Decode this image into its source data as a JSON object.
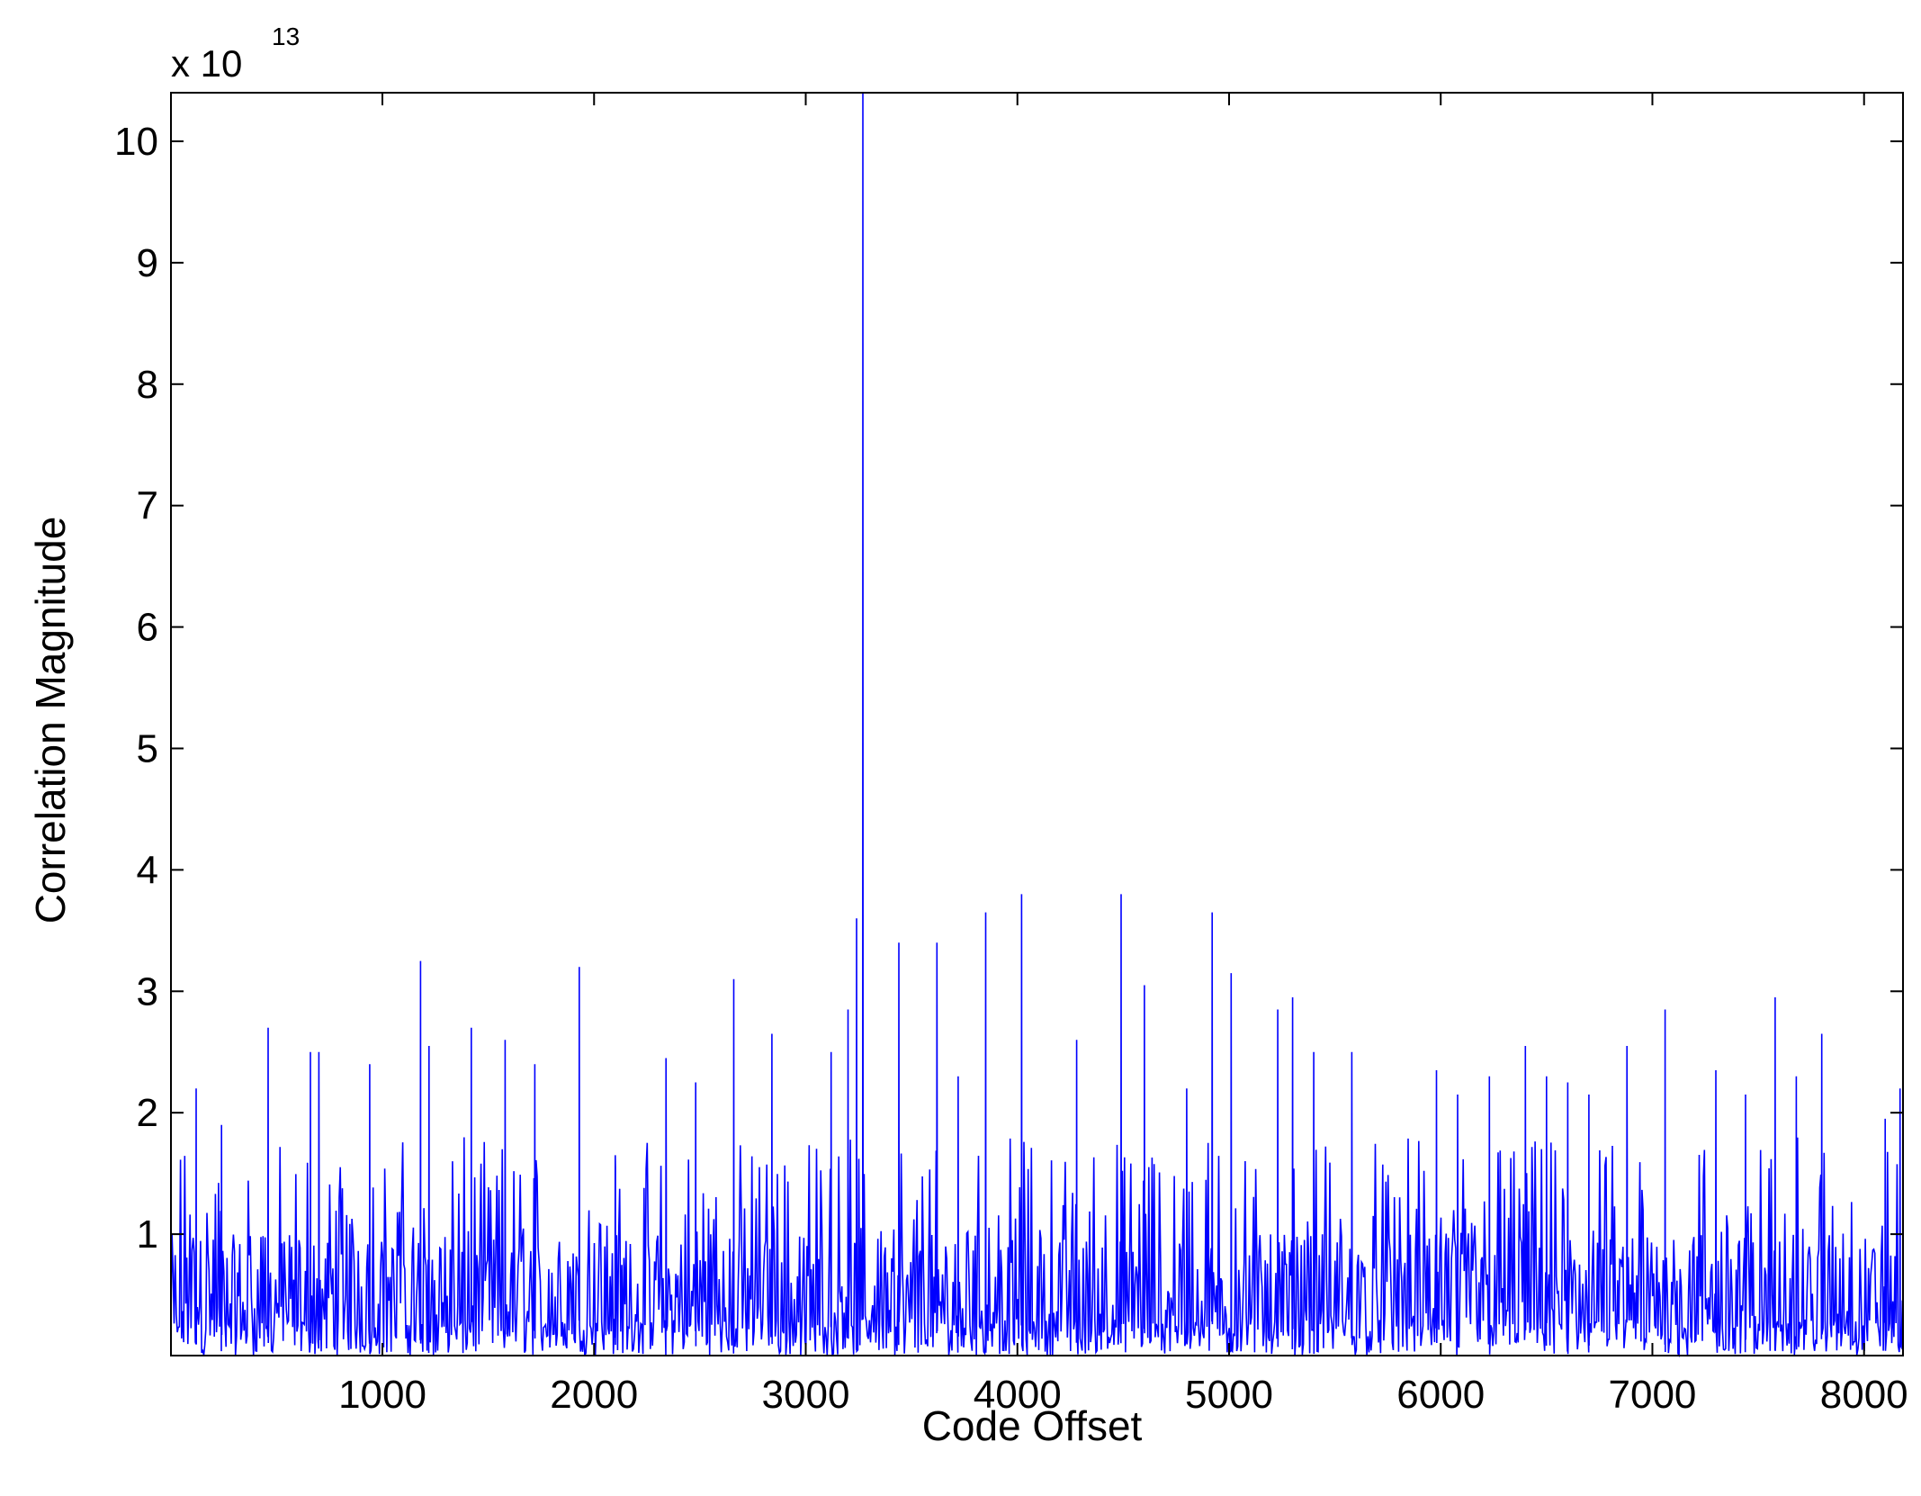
{
  "chart_data": {
    "type": "line",
    "xlabel": "Code Offset",
    "ylabel": "Correlation Magnitude",
    "y_exponent_base": "x 10",
    "y_exponent_power": "13",
    "xlim": [
      1,
      8184
    ],
    "ylim": [
      0,
      10.4
    ],
    "x_ticks": [
      1000,
      2000,
      3000,
      4000,
      5000,
      6000,
      7000,
      8000
    ],
    "x_tick_labels": [
      "1000",
      "2000",
      "3000",
      "4000",
      "5000",
      "6000",
      "7000",
      "8000"
    ],
    "y_ticks": [
      1,
      2,
      3,
      4,
      5,
      6,
      7,
      8,
      9,
      10
    ],
    "y_tick_labels": [
      "1",
      "2",
      "3",
      "4",
      "5",
      "6",
      "7",
      "8",
      "9",
      "10"
    ],
    "grid": false,
    "line_color": "#0000ff",
    "series": [
      {
        "x_start": 1,
        "x_end": 8184,
        "noise_floor_max": 1.8,
        "peak": {
          "x": 3270,
          "y": 10.4
        },
        "spikes": [
          [
            120,
            2.2
          ],
          [
            240,
            1.9
          ],
          [
            460,
            2.7
          ],
          [
            660,
            2.5
          ],
          [
            700,
            2.5
          ],
          [
            940,
            2.4
          ],
          [
            1180,
            3.25
          ],
          [
            1220,
            2.55
          ],
          [
            1420,
            2.7
          ],
          [
            1580,
            2.6
          ],
          [
            1720,
            2.4
          ],
          [
            1930,
            3.2
          ],
          [
            2100,
            1.65
          ],
          [
            2340,
            2.45
          ],
          [
            2480,
            2.25
          ],
          [
            2660,
            3.1
          ],
          [
            2840,
            2.65
          ],
          [
            3120,
            2.5
          ],
          [
            3200,
            2.85
          ],
          [
            3240,
            3.6
          ],
          [
            3440,
            3.4
          ],
          [
            3620,
            3.4
          ],
          [
            3720,
            2.3
          ],
          [
            3850,
            3.65
          ],
          [
            4020,
            3.8
          ],
          [
            4280,
            2.6
          ],
          [
            4490,
            3.8
          ],
          [
            4600,
            3.05
          ],
          [
            4800,
            2.2
          ],
          [
            4920,
            3.65
          ],
          [
            5010,
            3.15
          ],
          [
            5230,
            2.85
          ],
          [
            5300,
            2.95
          ],
          [
            5400,
            2.5
          ],
          [
            5580,
            2.5
          ],
          [
            5980,
            2.35
          ],
          [
            6080,
            2.15
          ],
          [
            6230,
            2.3
          ],
          [
            6400,
            2.55
          ],
          [
            6500,
            2.3
          ],
          [
            6600,
            2.25
          ],
          [
            6700,
            2.15
          ],
          [
            6880,
            2.55
          ],
          [
            7060,
            2.85
          ],
          [
            7300,
            2.35
          ],
          [
            7440,
            2.15
          ],
          [
            7580,
            2.95
          ],
          [
            7680,
            2.3
          ],
          [
            7800,
            2.65
          ],
          [
            8100,
            1.95
          ],
          [
            8170,
            2.2
          ]
        ]
      }
    ]
  }
}
